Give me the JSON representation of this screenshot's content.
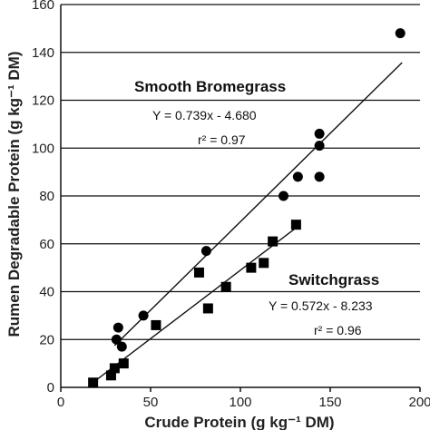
{
  "chart_data": {
    "type": "scatter",
    "xlabel": "Crude Protein (g kg⁻¹ DM)",
    "ylabel": "Rumen Degradable Protein (g kg⁻¹ DM)",
    "xlim": [
      0,
      200
    ],
    "ylim": [
      0,
      160
    ],
    "xticks": [
      "0",
      "50",
      "100",
      "150",
      "200"
    ],
    "yticks": [
      "0",
      "20",
      "40",
      "60",
      "80",
      "100",
      "120",
      "140",
      "160"
    ],
    "grid": "horizontal",
    "series": [
      {
        "name": "Smooth Bromegrass",
        "marker": "circle",
        "equation": "Y = 0.739x - 4.680",
        "r2": "r² = 0.97",
        "fit": {
          "slope": 0.739,
          "intercept": -4.68,
          "x_range": [
            30,
            190
          ]
        },
        "points": [
          [
            32,
            25
          ],
          [
            31,
            20
          ],
          [
            34,
            17
          ],
          [
            46,
            30
          ],
          [
            81,
            57
          ],
          [
            124,
            80
          ],
          [
            132,
            88
          ],
          [
            144,
            88
          ],
          [
            144,
            101
          ],
          [
            144,
            106
          ],
          [
            189,
            148
          ]
        ]
      },
      {
        "name": "Switchgrass",
        "marker": "square",
        "equation": "Y = 0.572x - 8.233",
        "r2": "r² = 0.96",
        "fit": {
          "slope": 0.572,
          "intercept": -8.233,
          "x_range": [
            18,
            132
          ]
        },
        "points": [
          [
            18,
            2
          ],
          [
            28,
            5
          ],
          [
            30,
            8
          ],
          [
            35,
            10
          ],
          [
            53,
            26
          ],
          [
            77,
            48
          ],
          [
            82,
            33
          ],
          [
            92,
            42
          ],
          [
            106,
            50
          ],
          [
            113,
            52
          ],
          [
            118,
            61
          ],
          [
            131,
            68
          ]
        ]
      }
    ]
  }
}
